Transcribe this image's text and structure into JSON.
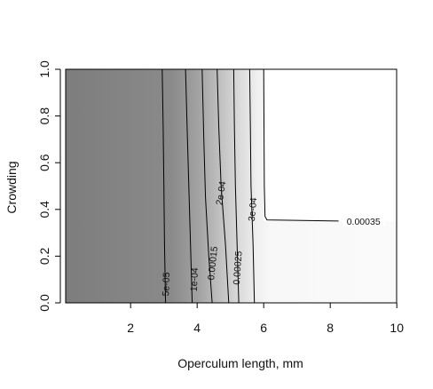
{
  "chart_data": {
    "type": "contour",
    "title": "",
    "xlabel": "Operculum length, mm",
    "ylabel": "Crowding",
    "xlim": [
      0,
      10
    ],
    "ylim": [
      0,
      1
    ],
    "x_ticks": [
      2,
      4,
      6,
      8,
      10
    ],
    "x_tick_labels": [
      "2",
      "4",
      "6",
      "8",
      "10"
    ],
    "y_ticks": [
      0.0,
      0.2,
      0.4,
      0.6,
      0.8,
      1.0
    ],
    "y_tick_labels": [
      "0.0",
      "0.2",
      "0.4",
      "0.6",
      "0.8",
      "1.0"
    ],
    "fill": "grayscale (dark = low, white = high)",
    "contours": [
      {
        "level": "5e-05",
        "points": [
          [
            3.05,
            0.0
          ],
          [
            3.02,
            0.25
          ],
          [
            3.0,
            0.5
          ],
          [
            2.98,
            0.75
          ],
          [
            2.95,
            1.0
          ]
        ]
      },
      {
        "level": "1e-04",
        "points": [
          [
            3.85,
            0.0
          ],
          [
            3.8,
            0.25
          ],
          [
            3.75,
            0.5
          ],
          [
            3.7,
            0.75
          ],
          [
            3.65,
            1.0
          ]
        ]
      },
      {
        "level": "0.00015",
        "points": [
          [
            4.45,
            0.0
          ],
          [
            4.35,
            0.2
          ],
          [
            4.25,
            0.45
          ],
          [
            4.2,
            0.7
          ],
          [
            4.15,
            1.0
          ]
        ]
      },
      {
        "level": "2e-04",
        "points": [
          [
            4.95,
            0.0
          ],
          [
            4.85,
            0.25
          ],
          [
            4.72,
            0.5
          ],
          [
            4.65,
            0.75
          ],
          [
            4.6,
            1.0
          ]
        ]
      },
      {
        "level": "0.00025",
        "points": [
          [
            5.25,
            0.0
          ],
          [
            5.2,
            0.25
          ],
          [
            5.15,
            0.5
          ],
          [
            5.12,
            0.75
          ],
          [
            5.1,
            1.0
          ]
        ]
      },
      {
        "level": "3e-04",
        "points": [
          [
            5.72,
            0.0
          ],
          [
            5.68,
            0.25
          ],
          [
            5.62,
            0.5
          ],
          [
            5.6,
            0.75
          ],
          [
            5.58,
            1.0
          ]
        ]
      },
      {
        "level": "0.00035",
        "points": [
          [
            6.0,
            1.0
          ],
          [
            6.02,
            0.5
          ],
          [
            6.04,
            0.37
          ],
          [
            6.1,
            0.355
          ],
          [
            8.25,
            0.35
          ]
        ]
      }
    ],
    "contour_labels": [
      {
        "text": "5e-05",
        "x": 3.05,
        "y": 0.08,
        "angle": -88
      },
      {
        "text": "1e-04",
        "x": 3.9,
        "y": 0.1,
        "angle": -87
      },
      {
        "text": "0.00015",
        "x": 4.45,
        "y": 0.17,
        "angle": -84
      },
      {
        "text": "2e-04",
        "x": 4.7,
        "y": 0.47,
        "angle": -81
      },
      {
        "text": "0.00025",
        "x": 5.2,
        "y": 0.15,
        "angle": -86
      },
      {
        "text": "3e-04",
        "x": 5.65,
        "y": 0.4,
        "angle": -85
      },
      {
        "text": "0.00035",
        "x": 9.0,
        "y": 0.35,
        "angle": 0
      }
    ]
  }
}
